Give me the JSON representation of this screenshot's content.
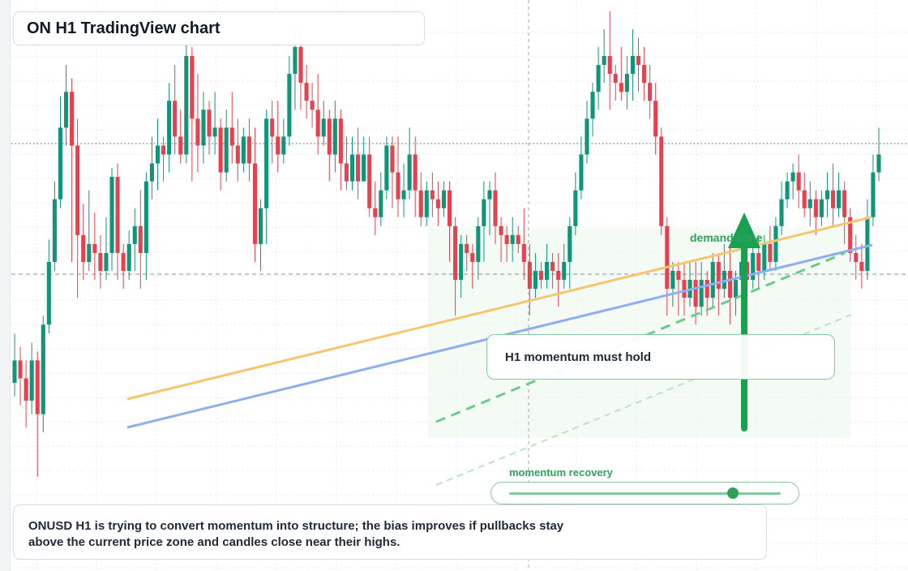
{
  "title": "ON H1 TradingView chart",
  "colors": {
    "up": "#10957b",
    "down": "#e5414f",
    "grid": "#e6e9ef",
    "orange_trend": "#f5c56f",
    "blue_trend": "#8eaeef",
    "green_accent": "#2ea25c",
    "zone_fill": "#ecf8ef"
  },
  "annotations": {
    "demand_zone": "demand zone",
    "momentum_card": "H1 momentum must hold",
    "recovery_label": "momentum recovery",
    "recovery_level": 0.82,
    "summary_line1": "ONUSD H1 is trying to convert momentum into structure; the bias improves if pullbacks stay",
    "summary_line2": "above the current price zone and candles close near their highs.",
    "arrow_icon": "up-arrow-icon"
  },
  "chart_data": {
    "type": "candlestick",
    "symbol": "ONUSD",
    "timeframe": "H1",
    "ylim": [
      0,
      100
    ],
    "grid": true,
    "reference_lines": {
      "dotted_level": 81,
      "dashed_level": 56
    },
    "candles": [
      [
        25,
        30,
        22,
        36
      ],
      [
        30,
        26,
        20,
        33
      ],
      [
        26,
        21,
        15,
        30
      ],
      [
        21,
        30,
        18,
        34
      ],
      [
        30,
        18,
        4,
        32
      ],
      [
        18,
        38,
        14,
        40
      ],
      [
        38,
        52,
        36,
        57
      ],
      [
        52,
        66,
        50,
        70
      ],
      [
        66,
        82,
        64,
        89
      ],
      [
        82,
        90,
        78,
        96
      ],
      [
        90,
        78,
        52,
        93
      ],
      [
        78,
        58,
        44,
        84
      ],
      [
        58,
        52,
        48,
        65
      ],
      [
        52,
        56,
        50,
        68
      ],
      [
        56,
        54,
        48,
        63
      ],
      [
        54,
        50,
        46,
        58
      ],
      [
        50,
        54,
        48,
        62
      ],
      [
        54,
        71,
        50,
        73
      ],
      [
        71,
        54,
        48,
        74
      ],
      [
        54,
        50,
        46,
        56
      ],
      [
        50,
        56,
        48,
        59
      ],
      [
        56,
        60,
        50,
        64
      ],
      [
        60,
        54,
        46,
        68
      ],
      [
        54,
        70,
        48,
        72
      ],
      [
        70,
        74,
        66,
        80
      ],
      [
        74,
        78,
        68,
        84
      ],
      [
        78,
        76,
        70,
        80
      ],
      [
        76,
        88,
        72,
        92
      ],
      [
        88,
        80,
        76,
        96
      ],
      [
        80,
        76,
        74,
        86
      ],
      [
        76,
        98,
        74,
        104
      ],
      [
        98,
        84,
        70,
        100
      ],
      [
        84,
        78,
        72,
        94
      ],
      [
        78,
        86,
        74,
        90
      ],
      [
        86,
        80,
        76,
        88
      ],
      [
        80,
        82,
        76,
        90
      ],
      [
        82,
        72,
        68,
        84
      ],
      [
        72,
        82,
        70,
        86
      ],
      [
        82,
        78,
        74,
        90
      ],
      [
        78,
        74,
        70,
        84
      ],
      [
        74,
        80,
        72,
        82
      ],
      [
        80,
        74,
        70,
        84
      ],
      [
        74,
        56,
        52,
        82
      ],
      [
        56,
        64,
        50,
        66
      ],
      [
        64,
        84,
        56,
        86
      ],
      [
        84,
        80,
        74,
        88
      ],
      [
        80,
        76,
        72,
        88
      ],
      [
        76,
        80,
        74,
        84
      ],
      [
        80,
        94,
        78,
        98
      ],
      [
        94,
        100,
        86,
        104
      ],
      [
        100,
        92,
        86,
        104
      ],
      [
        92,
        88,
        84,
        96
      ],
      [
        88,
        86,
        82,
        92
      ],
      [
        86,
        80,
        76,
        94
      ],
      [
        80,
        84,
        78,
        88
      ],
      [
        84,
        76,
        70,
        86
      ],
      [
        76,
        84,
        72,
        88
      ],
      [
        84,
        74,
        68,
        86
      ],
      [
        74,
        70,
        68,
        80
      ],
      [
        70,
        76,
        68,
        80
      ],
      [
        76,
        70,
        66,
        82
      ],
      [
        70,
        76,
        70,
        80
      ],
      [
        76,
        64,
        62,
        80
      ],
      [
        64,
        62,
        58,
        70
      ],
      [
        62,
        68,
        60,
        72
      ],
      [
        68,
        78,
        66,
        80
      ],
      [
        78,
        72,
        64,
        80
      ],
      [
        72,
        66,
        62,
        80
      ],
      [
        66,
        68,
        62,
        74
      ],
      [
        68,
        76,
        66,
        82
      ],
      [
        76,
        68,
        62,
        80
      ],
      [
        68,
        62,
        60,
        72
      ],
      [
        62,
        68,
        60,
        70
      ],
      [
        68,
        66,
        62,
        72
      ],
      [
        66,
        64,
        60,
        70
      ],
      [
        64,
        68,
        62,
        70
      ],
      [
        68,
        60,
        52,
        70
      ],
      [
        60,
        48,
        40,
        62
      ],
      [
        48,
        56,
        44,
        58
      ],
      [
        56,
        54,
        50,
        58
      ],
      [
        54,
        52,
        46,
        56
      ],
      [
        52,
        60,
        48,
        62
      ],
      [
        60,
        66,
        52,
        70
      ],
      [
        66,
        68,
        58,
        70
      ],
      [
        68,
        60,
        56,
        72
      ],
      [
        60,
        58,
        52,
        62
      ],
      [
        58,
        56,
        52,
        60
      ],
      [
        56,
        58,
        52,
        62
      ],
      [
        58,
        56,
        54,
        60
      ],
      [
        56,
        52,
        48,
        64
      ],
      [
        52,
        46,
        40,
        56
      ],
      [
        46,
        50,
        44,
        54
      ],
      [
        50,
        48,
        46,
        52
      ],
      [
        48,
        52,
        46,
        56
      ],
      [
        52,
        50,
        46,
        54
      ],
      [
        50,
        48,
        42,
        54
      ],
      [
        48,
        52,
        46,
        56
      ],
      [
        52,
        60,
        46,
        62
      ],
      [
        60,
        68,
        58,
        72
      ],
      [
        68,
        76,
        66,
        80
      ],
      [
        76,
        84,
        74,
        88
      ],
      [
        84,
        90,
        80,
        92
      ],
      [
        90,
        96,
        86,
        100
      ],
      [
        96,
        98,
        92,
        104
      ],
      [
        98,
        94,
        86,
        108
      ],
      [
        94,
        92,
        88,
        96
      ],
      [
        92,
        90,
        88,
        100
      ],
      [
        90,
        94,
        86,
        98
      ],
      [
        94,
        98,
        88,
        104
      ],
      [
        98,
        96,
        90,
        102
      ],
      [
        96,
        92,
        88,
        100
      ],
      [
        92,
        88,
        84,
        96
      ],
      [
        88,
        80,
        76,
        92
      ],
      [
        80,
        60,
        58,
        82
      ],
      [
        60,
        46,
        40,
        62
      ],
      [
        46,
        50,
        42,
        52
      ],
      [
        50,
        48,
        40,
        52
      ],
      [
        48,
        44,
        40,
        52
      ],
      [
        44,
        48,
        42,
        52
      ],
      [
        48,
        42,
        38,
        52
      ],
      [
        42,
        48,
        40,
        52
      ],
      [
        48,
        44,
        40,
        50
      ],
      [
        44,
        52,
        42,
        54
      ],
      [
        52,
        46,
        40,
        54
      ],
      [
        46,
        50,
        44,
        56
      ],
      [
        50,
        44,
        38,
        56
      ],
      [
        44,
        48,
        40,
        50
      ],
      [
        48,
        52,
        44,
        56
      ],
      [
        52,
        48,
        44,
        54
      ],
      [
        48,
        54,
        46,
        56
      ],
      [
        54,
        50,
        46,
        58
      ],
      [
        50,
        56,
        48,
        58
      ],
      [
        56,
        52,
        50,
        60
      ],
      [
        52,
        60,
        50,
        62
      ],
      [
        60,
        66,
        58,
        70
      ],
      [
        66,
        70,
        64,
        72
      ],
      [
        70,
        72,
        66,
        74
      ],
      [
        72,
        68,
        64,
        76
      ],
      [
        68,
        64,
        62,
        72
      ],
      [
        64,
        66,
        60,
        70
      ],
      [
        66,
        62,
        58,
        68
      ],
      [
        62,
        66,
        60,
        68
      ],
      [
        66,
        68,
        62,
        72
      ],
      [
        68,
        64,
        60,
        74
      ],
      [
        64,
        68,
        62,
        72
      ],
      [
        68,
        62,
        56,
        70
      ],
      [
        62,
        54,
        52,
        64
      ],
      [
        54,
        52,
        48,
        58
      ],
      [
        52,
        50,
        46,
        56
      ],
      [
        50,
        62,
        48,
        66
      ],
      [
        62,
        72,
        60,
        76
      ],
      [
        72,
        76,
        70,
        82
      ]
    ]
  }
}
